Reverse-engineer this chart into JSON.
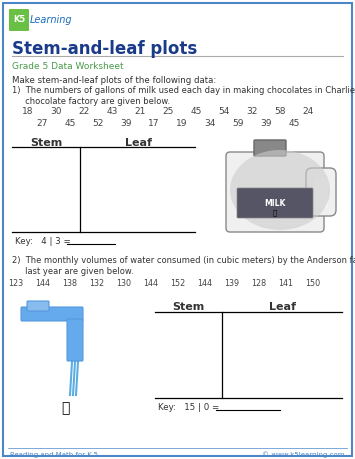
{
  "bg_color": "#ffffff",
  "border_color": "#4a86c8",
  "title": "Stem-and-leaf plots",
  "subtitle": "Grade 5 Data Worksheet",
  "title_color": "#1a3a8a",
  "subtitle_color": "#4a9a4a",
  "instruction": "Make stem-and-leaf plots of the following data:",
  "q1_label_line1": "1)  The numbers of gallons of milk used each day in making chocolates in Charlie’s",
  "q1_label_line2": "     chocolate factory are given below.",
  "q1_data_row1": [
    "18",
    "30",
    "22",
    "43",
    "21",
    "25",
    "45",
    "54",
    "32",
    "58",
    "24"
  ],
  "q1_data_row2": [
    "27",
    "45",
    "52",
    "39",
    "17",
    "19",
    "34",
    "59",
    "39",
    "45"
  ],
  "q1_stem_label": "Stem",
  "q1_leaf_label": "Leaf",
  "q1_key": "Key:   4 | 3 =",
  "q2_label_line1": "2)  The monthly volumes of water consumed (in cubic meters) by the Anderson family",
  "q2_label_line2": "     last year are given below.",
  "q2_data_row1": [
    "123",
    "144",
    "138",
    "132",
    "130",
    "144",
    "152",
    "144",
    "139",
    "128",
    "141",
    "150"
  ],
  "q2_stem_label": "Stem",
  "q2_leaf_label": "Leaf",
  "q2_key": "Key:   15 | 0 =",
  "footer_left": "Reading and Math for K-5",
  "footer_right": "© www.k5learning.com",
  "footer_color": "#4a86c8",
  "line_color": "#000000",
  "text_color": "#333333",
  "data_color": "#444444",
  "gray_line_color": "#aaaaaa"
}
